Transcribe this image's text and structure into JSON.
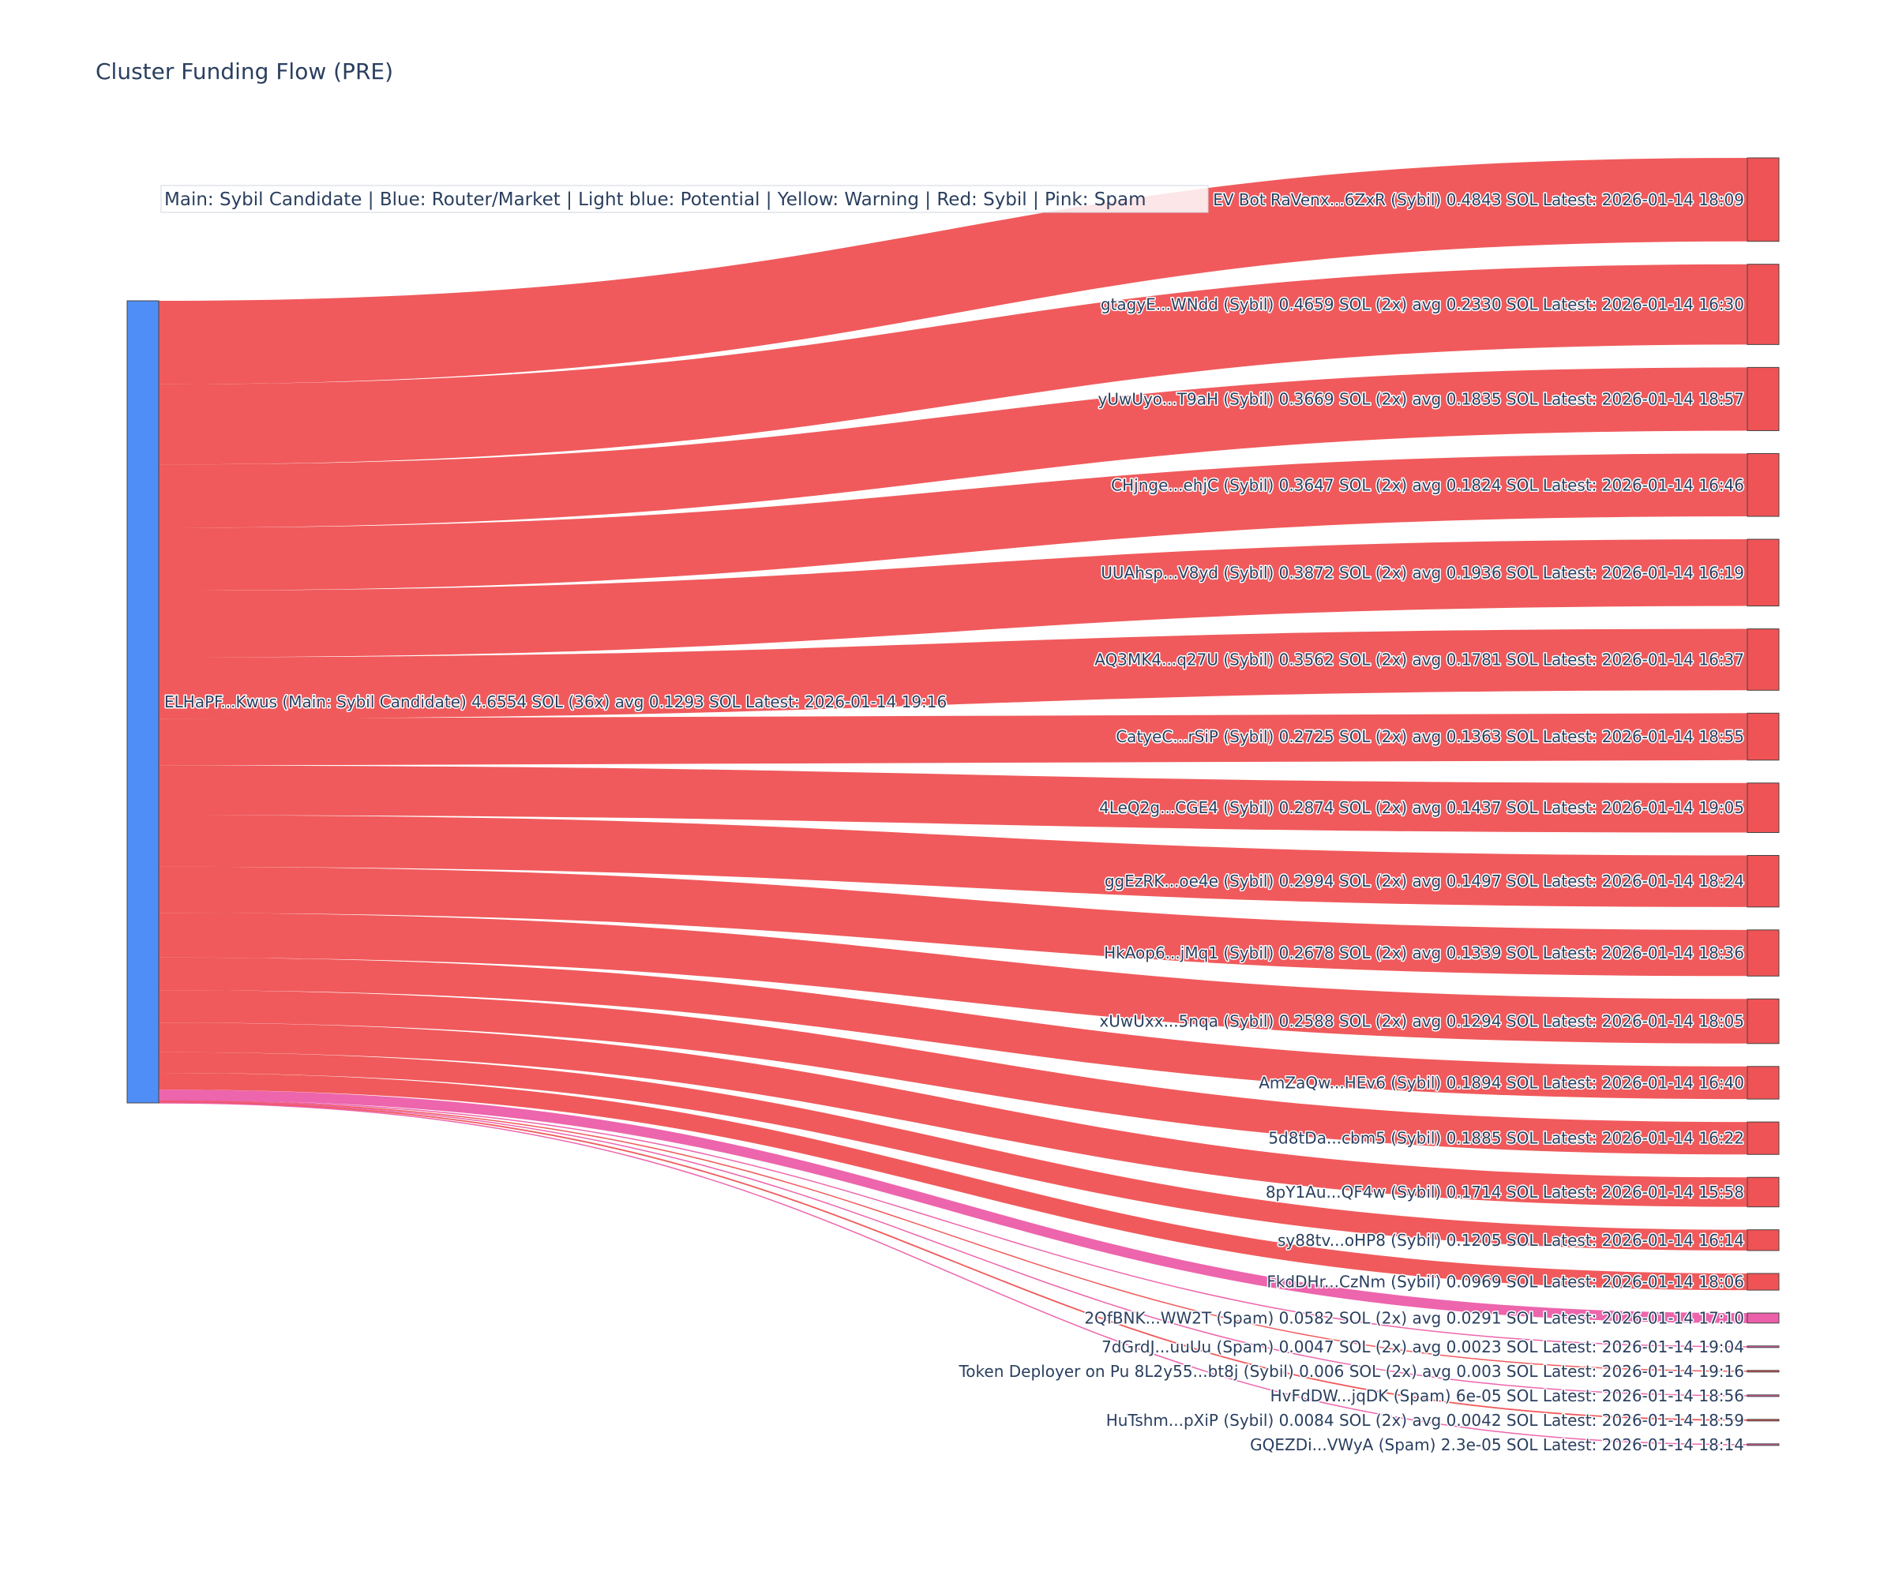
{
  "chart_data": {
    "type": "sankey",
    "title": "Cluster Funding Flow (PRE)",
    "legend_text": "Main: Sybil Candidate  |  Blue: Router/Market | Light blue: Potential | Yellow: Warning | Red: Sybil | Pink: Spam",
    "legend_placement": "top-left",
    "colors": {
      "source_node": "#4f8ef7",
      "sybil": "#ef5355",
      "spam": "#ec5fa9",
      "node_border": "#444444"
    },
    "source": {
      "label": "ELHaPF...Kwus (Main: Sybil Candidate) 4.6554 SOL (36x) avg 0.1293 SOL Latest: 2026-01-14 19:16",
      "value": 4.6554
    },
    "targets": [
      {
        "label": "EV Bot RaVenx...6ZxR (Sybil) 0.4843 SOL Latest: 2026-01-14 18:09",
        "value": 0.4843,
        "category": "sybil"
      },
      {
        "label": "gtagyE...WNdd (Sybil) 0.4659 SOL (2x) avg 0.2330 SOL Latest: 2026-01-14 16:30",
        "value": 0.4659,
        "category": "sybil"
      },
      {
        "label": "yUwUyo...T9aH (Sybil) 0.3669 SOL (2x) avg 0.1835 SOL Latest: 2026-01-14 18:57",
        "value": 0.3669,
        "category": "sybil"
      },
      {
        "label": "CHjnge...ehjC (Sybil) 0.3647 SOL (2x) avg 0.1824 SOL Latest: 2026-01-14 16:46",
        "value": 0.3647,
        "category": "sybil"
      },
      {
        "label": "UUAhsp...V8yd (Sybil) 0.3872 SOL (2x) avg 0.1936 SOL Latest: 2026-01-14 16:19",
        "value": 0.3872,
        "category": "sybil"
      },
      {
        "label": "AQ3MK4...q27U (Sybil) 0.3562 SOL (2x) avg 0.1781 SOL Latest: 2026-01-14 16:37",
        "value": 0.3562,
        "category": "sybil"
      },
      {
        "label": "CatyeC...rSiP (Sybil) 0.2725 SOL (2x) avg 0.1363 SOL Latest: 2026-01-14 18:55",
        "value": 0.2725,
        "category": "sybil"
      },
      {
        "label": "4LeQ2g...CGE4 (Sybil) 0.2874 SOL (2x) avg 0.1437 SOL Latest: 2026-01-14 19:05",
        "value": 0.2874,
        "category": "sybil"
      },
      {
        "label": "ggEzRK...oe4e (Sybil) 0.2994 SOL (2x) avg 0.1497 SOL Latest: 2026-01-14 18:24",
        "value": 0.2994,
        "category": "sybil"
      },
      {
        "label": "HkAop6...jMq1 (Sybil) 0.2678 SOL (2x) avg 0.1339 SOL Latest: 2026-01-14 18:36",
        "value": 0.2678,
        "category": "sybil"
      },
      {
        "label": "xUwUxx...5nqa (Sybil) 0.2588 SOL (2x) avg 0.1294 SOL Latest: 2026-01-14 18:05",
        "value": 0.2588,
        "category": "sybil"
      },
      {
        "label": "AmZaQw...HEv6 (Sybil) 0.1894 SOL Latest: 2026-01-14 16:40",
        "value": 0.1894,
        "category": "sybil"
      },
      {
        "label": "5d8tDa...cbm5 (Sybil) 0.1885 SOL Latest: 2026-01-14 16:22",
        "value": 0.1885,
        "category": "sybil"
      },
      {
        "label": "8pY1Au...QF4w (Sybil) 0.1714 SOL Latest: 2026-01-14 15:58",
        "value": 0.1714,
        "category": "sybil"
      },
      {
        "label": "sy88tv...oHP8 (Sybil) 0.1205 SOL Latest: 2026-01-14 16:14",
        "value": 0.1205,
        "category": "sybil"
      },
      {
        "label": "FkdDHr...CzNm (Sybil) 0.0969 SOL Latest: 2026-01-14 18:06",
        "value": 0.0969,
        "category": "sybil"
      },
      {
        "label": "2QfBNK...WW2T (Spam) 0.0582 SOL (2x) avg 0.0291 SOL Latest: 2026-01-14 17:10",
        "value": 0.0582,
        "category": "spam"
      },
      {
        "label": "7dGrdJ...uuUu (Spam) 0.0047 SOL (2x) avg 0.0023 SOL Latest: 2026-01-14 19:04",
        "value": 0.0047,
        "category": "spam"
      },
      {
        "label": "Token Deployer on Pu 8L2y55...bt8j (Sybil) 0.006 SOL (2x) avg 0.003 SOL Latest: 2026-01-14 19:16",
        "value": 0.006,
        "category": "sybil"
      },
      {
        "label": "HvFdDW...jqDK (Spam) 6e-05 SOL Latest: 2026-01-14 18:56",
        "value": 6e-05,
        "category": "spam"
      },
      {
        "label": "HuTshm...pXiP (Sybil) 0.0084 SOL (2x) avg 0.0042 SOL Latest: 2026-01-14 18:59",
        "value": 0.0084,
        "category": "sybil"
      },
      {
        "label": "GQEZDi...VWyA (Spam) 2.3e-05 SOL Latest: 2026-01-14 18:14",
        "value": 2.3e-05,
        "category": "spam"
      }
    ]
  }
}
